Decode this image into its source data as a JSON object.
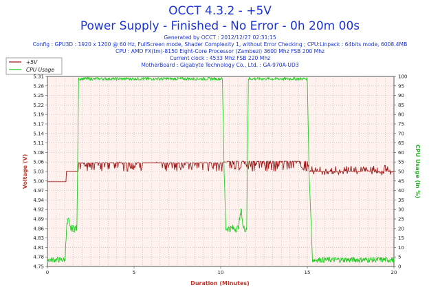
{
  "header": {
    "title": "OCCT 4.3.2 - +5V",
    "subtitle": "Power Supply - Finished - No Error - 0h 20m 00s",
    "info_lines": [
      "Generated by OCCT : 2012/12/27 02:31:15",
      "Config : GPU3D : 1920 x 1200 @ 60 Hz, FullScreen mode, Shader Complexity 1, without Error Checking ; CPU:Linpack : 64bits mode, 6008.4MB",
      "CPU : AMD FX(tm)-8150 Eight-Core Processor (Zambezi) 3600 Mhz FSB 200 Mhz",
      "Current clock : 4533 Mhz FSB 220 Mhz",
      "MotherBoard : Gigabyte Technology Co., Ltd. : GA-970A-UD3"
    ]
  },
  "colors": {
    "voltage": "#a01818",
    "cpu": "#22cc22",
    "plot_bg": "#fff2ee",
    "grid": "#a0a0a0",
    "left_axis": "#c0372c",
    "right_axis": "#22b322"
  },
  "chart_data": {
    "type": "line",
    "xlabel": "Duration (Minutes)",
    "ylabel": "Voltage (V)",
    "y2label": "CPU Usage (in %)",
    "xlim": [
      0,
      20
    ],
    "ylim": [
      4.75,
      5.31
    ],
    "y2lim": [
      0,
      100
    ],
    "x_ticks": [
      "0",
      "5",
      "10",
      "15",
      "20"
    ],
    "y_ticks": [
      "4.75",
      "4.78",
      "4.81",
      "4.83",
      "4.86",
      "4.89",
      "4.92",
      "4.94",
      "4.97",
      "5.00",
      "5.03",
      "5.06",
      "5.08",
      "5.11",
      "5.14",
      "5.17",
      "5.19",
      "5.22",
      "5.25",
      "5.28",
      "5.31"
    ],
    "y2_ticks": [
      "0",
      "5",
      "10",
      "15",
      "20",
      "25",
      "30",
      "35",
      "40",
      "45",
      "50",
      "55",
      "60",
      "65",
      "70",
      "75",
      "80",
      "85",
      "90",
      "95",
      "100"
    ],
    "grid": true,
    "legend_position": "top-left",
    "series": [
      {
        "name": "+5V",
        "axis": "left",
        "x": [
          0,
          1.1,
          1.1,
          1.8,
          1.8,
          10.2,
          10.2,
          10.4,
          10.4,
          15.1,
          15.1,
          20
        ],
        "y": [
          5.0,
          5.0,
          5.03,
          5.03,
          5.055,
          5.06,
          5.058,
          5.058,
          5.06,
          5.06,
          5.03,
          5.03
        ]
      },
      {
        "name": "CPU Usage",
        "axis": "right",
        "x": [
          0,
          1.0,
          1.1,
          1.2,
          1.3,
          1.7,
          1.8,
          10.1,
          10.2,
          10.3,
          11.0,
          11.2,
          11.3,
          11.5,
          11.6,
          11.7,
          15.0,
          15.1,
          15.3,
          20
        ],
        "y": [
          3,
          3,
          20,
          25,
          20,
          20,
          99,
          99,
          50,
          20,
          20,
          30,
          20,
          20,
          99,
          99,
          99,
          50,
          3,
          3
        ]
      }
    ]
  }
}
